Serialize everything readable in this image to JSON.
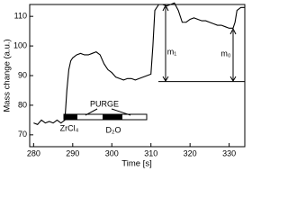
{
  "chart_data": {
    "type": "line",
    "x_label": "Time [s]",
    "y_label": "Mass change (a.u.)",
    "x": [
      280,
      281,
      282,
      283,
      284,
      285,
      286,
      287,
      288,
      288.5,
      289,
      289.5,
      290,
      291,
      292,
      293,
      294,
      295,
      296,
      297,
      298,
      299,
      300,
      301,
      302,
      303,
      304,
      305,
      306,
      307,
      308,
      309,
      310,
      310.5,
      311,
      312,
      313,
      314,
      315,
      316,
      317,
      318,
      319,
      320,
      321,
      322,
      323,
      324,
      325,
      326,
      327,
      328,
      329,
      330,
      331,
      331.5,
      332,
      333,
      334
    ],
    "series": [
      {
        "color": "#000000",
        "values": [
          74,
          73.5,
          75,
          74,
          74.5,
          74,
          75,
          74,
          75,
          85,
          92,
          95,
          96,
          97,
          97.5,
          97,
          97,
          97.5,
          98,
          97,
          94,
          92,
          91,
          89.5,
          89,
          88.5,
          89,
          89,
          88.5,
          89,
          89.5,
          90,
          90.5,
          100,
          112,
          114,
          114,
          113.5,
          114,
          114.5,
          112,
          108,
          108,
          109,
          109.5,
          109,
          108.5,
          108.5,
          108,
          107.5,
          107,
          107,
          106.5,
          106,
          106,
          108,
          112,
          113,
          113
        ]
      }
    ],
    "xlim": [
      279,
      334
    ],
    "ylim": [
      66,
      114
    ],
    "xticks": [
      280,
      290,
      300,
      310,
      320,
      330
    ],
    "yticks": [
      70,
      80,
      90,
      100,
      110
    ],
    "grid": false,
    "annotations": [
      "PURGE",
      "ZrCl₄",
      "D₂O",
      "m₁",
      "m₀"
    ]
  }
}
